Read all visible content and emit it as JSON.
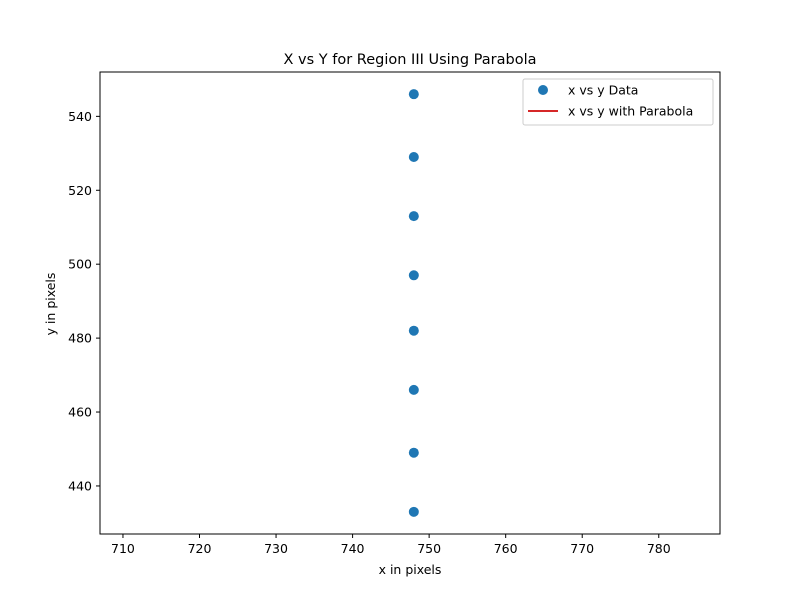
{
  "chart_data": {
    "type": "scatter",
    "title": "X vs Y for Region III Using Parabola",
    "xlabel": "x in pixels",
    "ylabel": "y in pixels",
    "xlim": [
      707,
      788
    ],
    "ylim": [
      427,
      552
    ],
    "xticks": [
      710,
      720,
      730,
      740,
      750,
      760,
      770,
      780
    ],
    "yticks": [
      440,
      460,
      480,
      500,
      520,
      540
    ],
    "grid": false,
    "legend_position": "top-right",
    "series": [
      {
        "name": "x vs y Data",
        "kind": "scatter",
        "color": "#1f77b4",
        "points": [
          {
            "x": 748,
            "y": 546
          },
          {
            "x": 748,
            "y": 529
          },
          {
            "x": 748,
            "y": 513
          },
          {
            "x": 748,
            "y": 497
          },
          {
            "x": 748,
            "y": 482
          },
          {
            "x": 748,
            "y": 466
          },
          {
            "x": 748,
            "y": 449
          },
          {
            "x": 748,
            "y": 433
          }
        ]
      },
      {
        "name": "x vs y with Parabola",
        "kind": "line",
        "color": "#d62728",
        "points": []
      }
    ]
  }
}
